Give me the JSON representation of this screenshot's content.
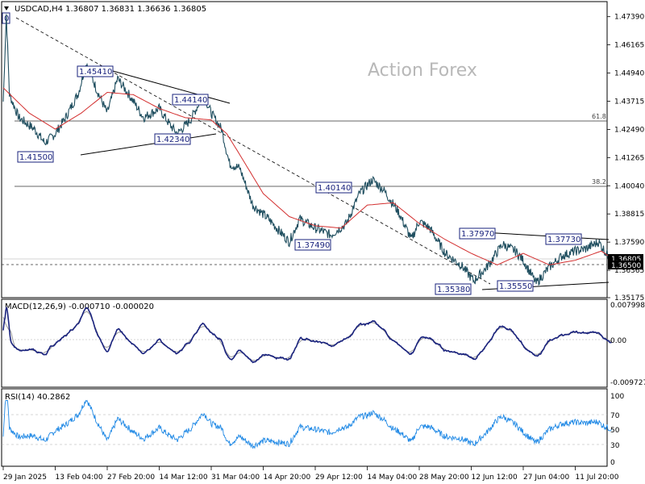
{
  "header": {
    "symbol_line": "USDCAD,H4  1.36807 1.36831 1.36636 1.36805",
    "menu_arrow": "triangle-down-icon"
  },
  "watermark": "Action Forex",
  "price_axis": {
    "ticks": [
      "1.47390",
      "1.46165",
      "1.44940",
      "1.43715",
      "1.42490",
      "1.41265",
      "1.40040",
      "1.38815",
      "1.37590",
      "1.36365",
      "1.35175"
    ],
    "current_price": "1.36805",
    "support_price": "1.36500",
    "left_partial_label": "0"
  },
  "fibonacci": {
    "level_618": "61.8",
    "level_382": "38.2",
    "price_618": 1.431,
    "price_382": 1.403
  },
  "annotations": [
    {
      "text": "1.45410",
      "price": 1.4541
    },
    {
      "text": "1.44140",
      "price": 1.4414
    },
    {
      "text": "1.42340",
      "price": 1.4234
    },
    {
      "text": "1.41500",
      "price": 1.415
    },
    {
      "text": "1.40140",
      "price": 1.4014
    },
    {
      "text": "1.37490",
      "price": 1.3749
    },
    {
      "text": "1.37970",
      "price": 1.3797
    },
    {
      "text": "1.37730",
      "price": 1.3773
    },
    {
      "text": "1.35380",
      "price": 1.3538
    },
    {
      "text": "1.35550",
      "price": 1.3555
    }
  ],
  "macd": {
    "label": "MACD(12,26,9) -0.000710 -0.000020",
    "ticks": [
      "0.007998",
      "0.00",
      "-0.009727"
    ]
  },
  "rsi": {
    "label": "RSI(14) 40.2862",
    "ticks": [
      "100",
      "70",
      "50",
      "30",
      "0"
    ]
  },
  "time_axis": [
    "29 Jan 2025",
    "13 Feb 04:00",
    "27 Feb 20:00",
    "14 Mar 12:00",
    "31 Mar 04:00",
    "14 Apr 20:00",
    "29 Apr 12:00",
    "14 May 04:00",
    "28 May 20:00",
    "12 Jun 12:00",
    "27 Jun 04:00",
    "11 Jul 20:00"
  ],
  "colors": {
    "price": "#1f4e5f",
    "ma": "#d32f2f",
    "macd": "#1a237e",
    "signal": "#999999",
    "rsi": "#1e88e5",
    "label": "#1a237e"
  },
  "chart_data": {
    "type": "line",
    "title": "USDCAD,H4  1.36807 1.36831 1.36636 1.36805",
    "xlabel": "",
    "ylabel": "",
    "ylim": [
      1.35175,
      1.4801
    ],
    "x": [
      "29 Jan 2025",
      "13 Feb 04:00",
      "27 Feb 20:00",
      "14 Mar 12:00",
      "31 Mar 04:00",
      "14 Apr 20:00",
      "29 Apr 12:00",
      "14 May 04:00",
      "28 May 20:00",
      "12 Jun 12:00",
      "27 Jun 04:00",
      "11 Jul 20:00"
    ],
    "series": [
      {
        "points": [
          [
            0,
            1.437
          ],
          [
            0.06,
            1.475
          ],
          [
            0.12,
            1.44
          ],
          [
            0.3,
            1.43
          ],
          [
            0.6,
            1.425
          ],
          [
            0.8,
            1.419
          ],
          [
            1,
            1.423
          ],
          [
            1.2,
            1.43
          ],
          [
            1.45,
            1.441
          ],
          [
            1.6,
            1.454
          ],
          [
            1.8,
            1.442
          ],
          [
            2,
            1.432
          ],
          [
            2.2,
            1.447
          ],
          [
            2.45,
            1.439
          ],
          [
            2.7,
            1.43
          ],
          [
            3,
            1.434
          ],
          [
            3.2,
            1.427
          ],
          [
            3.35,
            1.423
          ],
          [
            3.6,
            1.429
          ],
          [
            3.85,
            1.44
          ],
          [
            4,
            1.432
          ],
          [
            4.2,
            1.425
          ],
          [
            4.35,
            1.41
          ],
          [
            4.55,
            1.408
          ],
          [
            4.8,
            1.392
          ],
          [
            5.1,
            1.386
          ],
          [
            5.3,
            1.381
          ],
          [
            5.5,
            1.376
          ],
          [
            5.7,
            1.386
          ],
          [
            6,
            1.382
          ],
          [
            6.3,
            1.379
          ],
          [
            6.6,
            1.384
          ],
          [
            6.85,
            1.397
          ],
          [
            7.1,
            1.403
          ],
          [
            7.3,
            1.399
          ],
          [
            7.6,
            1.389
          ],
          [
            7.85,
            1.377
          ],
          [
            8,
            1.385
          ],
          [
            8.2,
            1.382
          ],
          [
            8.5,
            1.371
          ],
          [
            8.8,
            1.366
          ],
          [
            9.05,
            1.359
          ],
          [
            9.3,
            1.365
          ],
          [
            9.6,
            1.375
          ],
          [
            9.85,
            1.372
          ],
          [
            10,
            1.368
          ],
          [
            10.25,
            1.358
          ],
          [
            10.5,
            1.365
          ],
          [
            10.75,
            1.37
          ],
          [
            11,
            1.372
          ],
          [
            11.2,
            1.373
          ],
          [
            11.45,
            1.376
          ],
          [
            11.6,
            1.371
          ],
          [
            11.7,
            1.368
          ]
        ]
      },
      {
        "points": [
          [
            0,
            1.443
          ],
          [
            0.5,
            1.432
          ],
          [
            1,
            1.425
          ],
          [
            1.5,
            1.432
          ],
          [
            2,
            1.441
          ],
          [
            2.5,
            1.44
          ],
          [
            3,
            1.434
          ],
          [
            3.5,
            1.43
          ],
          [
            4,
            1.429
          ],
          [
            4.3,
            1.423
          ],
          [
            4.6,
            1.412
          ],
          [
            5,
            1.397
          ],
          [
            5.5,
            1.387
          ],
          [
            6,
            1.383
          ],
          [
            6.5,
            1.382
          ],
          [
            7,
            1.392
          ],
          [
            7.5,
            1.393
          ],
          [
            8,
            1.384
          ],
          [
            8.5,
            1.377
          ],
          [
            9,
            1.371
          ],
          [
            9.5,
            1.366
          ],
          [
            10,
            1.371
          ],
          [
            10.5,
            1.366
          ],
          [
            11,
            1.368
          ],
          [
            11.5,
            1.372
          ],
          [
            11.7,
            1.369
          ]
        ]
      }
    ]
  }
}
